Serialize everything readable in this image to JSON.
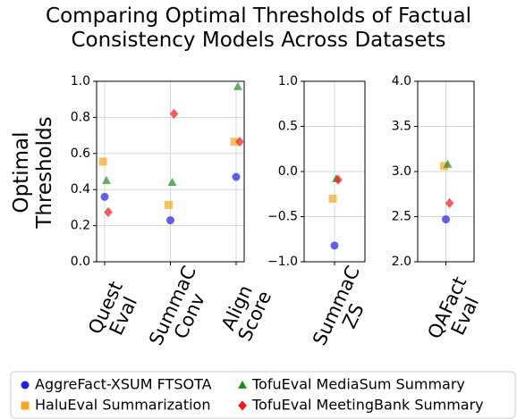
{
  "chart_data": {
    "type": "scatter",
    "title": "Comparing Optimal Thresholds of Factual Consistency Models Across Datasets",
    "ylabel": "Optimal Thresholds",
    "grid": true,
    "legend": "bottom",
    "series": [
      {
        "name": "AggreFact-XSUM FTSOTA",
        "color": "#2020e0",
        "marker": "circle"
      },
      {
        "name": "HaluEval Summarization",
        "color": "#f5a623",
        "marker": "square"
      },
      {
        "name": "TofuEval MediaSum Summary",
        "color": "#1f8a1f",
        "marker": "triangle"
      },
      {
        "name": "TofuEval MeetingBank Summary",
        "color": "#f01818",
        "marker": "diamond"
      }
    ],
    "panels": [
      {
        "categories": [
          "Quest Eval",
          "SummaC Conv",
          "Align Score"
        ],
        "ylim": [
          0,
          1
        ],
        "yticks": [
          {
            "value": 0,
            "label": "0.0"
          },
          0.2,
          0.4,
          0.6,
          0.8,
          {
            "value": 1,
            "label": "1.0"
          }
        ],
        "series": [
          {
            "values": [
              0.36,
              0.23,
              0.47
            ]
          },
          {
            "values": [
              0.555,
              0.315,
              0.665
            ]
          },
          {
            "values": [
              0.45,
              0.44,
              0.97
            ]
          },
          {
            "values": [
              0.275,
              0.82,
              0.665
            ]
          }
        ]
      },
      {
        "categories": [
          "SummaC ZS"
        ],
        "ylim": [
          -1,
          1
        ],
        "yticks": [
          {
            "value": -1,
            "label": "−1.0"
          },
          {
            "value": -0.5,
            "label": "−0.5"
          },
          {
            "value": 0,
            "label": "0.0"
          },
          0.5,
          {
            "value": 1,
            "label": "1.0"
          }
        ],
        "series": [
          {
            "values": [
              -0.82
            ]
          },
          {
            "values": [
              -0.3
            ]
          },
          {
            "values": [
              -0.08
            ]
          },
          {
            "values": [
              -0.09
            ]
          }
        ]
      },
      {
        "categories": [
          "QAFact Eval"
        ],
        "ylim": [
          2,
          4
        ],
        "yticks": [
          {
            "value": 2,
            "label": "2.0"
          },
          2.5,
          {
            "value": 3,
            "label": "3.0"
          },
          3.5,
          {
            "value": 4,
            "label": "4.0"
          }
        ],
        "series": [
          {
            "values": [
              2.47
            ]
          },
          {
            "values": [
              3.06
            ]
          },
          {
            "values": [
              3.08
            ]
          },
          {
            "values": [
              2.65
            ]
          }
        ]
      }
    ]
  }
}
